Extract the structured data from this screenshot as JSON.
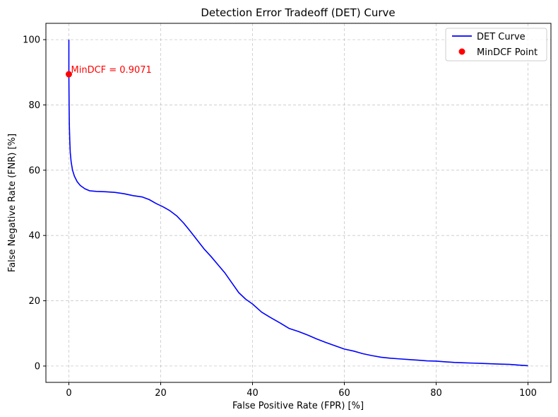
{
  "chart_data": {
    "type": "line",
    "title": "Detection Error Tradeoff (DET) Curve",
    "xlabel": "False Positive Rate (FPR) [%]",
    "ylabel": "False Negative Rate (FNR) [%]",
    "xlim": [
      -5,
      105
    ],
    "ylim": [
      -5,
      105
    ],
    "xticks": [
      0,
      20,
      40,
      60,
      80,
      100
    ],
    "yticks": [
      0,
      20,
      40,
      60,
      80,
      100
    ],
    "xtick_labels": [
      "0",
      "20",
      "40",
      "60",
      "80",
      "100"
    ],
    "ytick_labels": [
      "0",
      "20",
      "40",
      "60",
      "80",
      "100"
    ],
    "grid": true,
    "legend_position": "top-right",
    "series": [
      {
        "name": "DET Curve",
        "color": "#0000ff",
        "x": [
          0,
          0,
          0.05,
          0.1,
          0.2,
          0.3,
          0.5,
          0.8,
          1.2,
          1.8,
          2.5,
          3.5,
          4.5,
          6,
          8,
          10,
          12,
          14,
          16,
          17.5,
          19,
          20.5,
          22,
          23.5,
          25,
          26.5,
          28,
          29.5,
          31,
          32.5,
          34,
          35.5,
          37,
          38.5,
          40,
          42,
          44,
          46,
          48,
          50,
          52,
          54,
          56,
          58,
          60,
          62,
          64,
          66,
          68,
          70,
          72,
          74,
          76,
          78,
          80,
          82,
          84,
          86,
          88,
          90,
          92,
          94,
          96,
          98,
          100
        ],
        "y": [
          100,
          89.4,
          80,
          74,
          69,
          65.5,
          62.5,
          60,
          58.2,
          56.5,
          55.3,
          54.3,
          53.7,
          53.5,
          53.4,
          53.2,
          52.8,
          52.2,
          51.8,
          51,
          49.8,
          48.8,
          47.6,
          46,
          43.8,
          41.2,
          38.5,
          35.8,
          33.5,
          31,
          28.5,
          25.5,
          22.5,
          20.5,
          19,
          16.5,
          14.8,
          13.2,
          11.5,
          10.6,
          9.5,
          8.3,
          7.2,
          6.2,
          5.2,
          4.6,
          3.8,
          3.2,
          2.7,
          2.4,
          2.2,
          2.0,
          1.8,
          1.6,
          1.5,
          1.3,
          1.1,
          1.0,
          0.9,
          0.8,
          0.7,
          0.6,
          0.5,
          0.3,
          0.1
        ]
      }
    ],
    "points": [
      {
        "name": "MinDCF Point",
        "color": "#ff0000",
        "x": 0,
        "y": 89.4,
        "annotation": "MinDCF = 0.9071"
      }
    ],
    "legend": [
      {
        "label": "DET Curve",
        "kind": "line",
        "color": "#0000ff"
      },
      {
        "label": "MinDCF Point",
        "kind": "marker",
        "color": "#ff0000"
      }
    ]
  }
}
